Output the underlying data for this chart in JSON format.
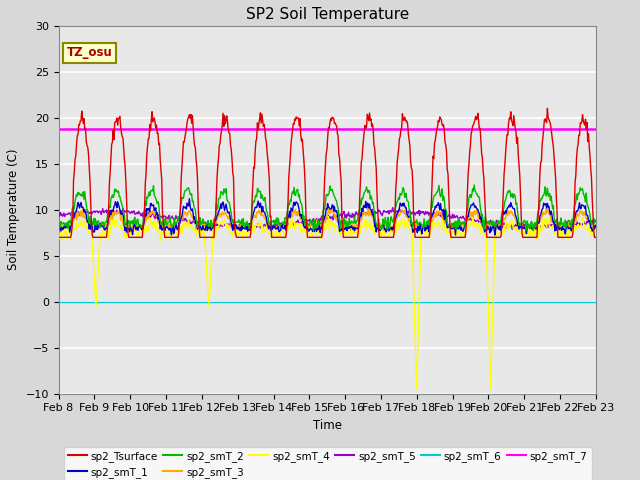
{
  "title": "SP2 Soil Temperature",
  "xlabel": "Time",
  "ylabel": "Soil Temperature (C)",
  "ylim": [
    -10,
    30
  ],
  "background_color": "#e8e8e8",
  "grid_color": "white",
  "tz_label": "TZ_osu",
  "series_colors": {
    "sp2_Tsurface": "#dd0000",
    "sp2_smT_1": "#0000cc",
    "sp2_smT_2": "#00bb00",
    "sp2_smT_3": "#ffaa00",
    "sp2_smT_4": "#ffff00",
    "sp2_smT_5": "#9900cc",
    "sp2_smT_6": "#00cccc",
    "sp2_smT_7": "#ff00ff"
  },
  "x_tick_labels": [
    "Feb 8",
    "Feb 9",
    "Feb 10",
    "Feb 11",
    "Feb 12",
    "Feb 13",
    "Feb 14",
    "Feb 15",
    "Feb 16",
    "Feb 17",
    "Feb 18",
    "Feb 19",
    "Feb 20",
    "Feb 21",
    "Feb 22",
    "Feb 23"
  ],
  "smT_7_value": 18.8,
  "smT_6_value": -0.05,
  "figsize": [
    6.4,
    4.8
  ],
  "dpi": 100
}
